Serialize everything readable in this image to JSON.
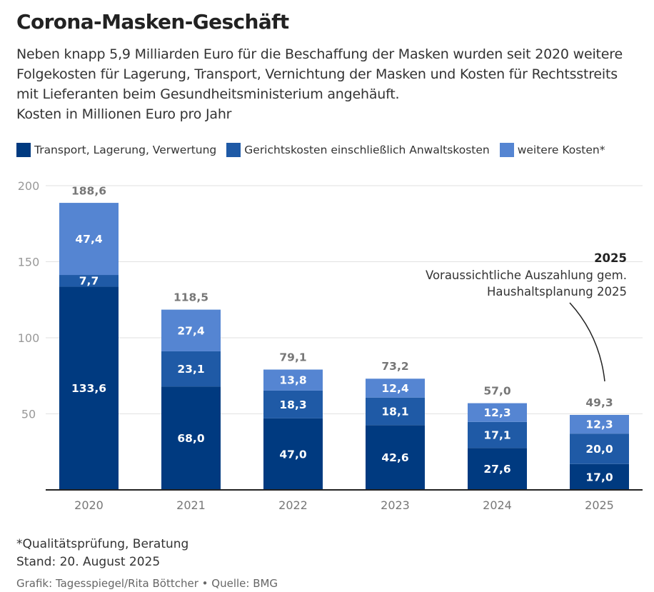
{
  "header": {
    "title": "Corona-Masken-Geschäft",
    "subtitle_lines": [
      "Neben knapp 5,9 Milliarden Euro für die Beschaffung der Masken wurden seit 2020 weitere",
      "Folgekosten für Lagerung, Transport, Vernichtung der Masken und Kosten für Rechtsstreits",
      "mit Lieferanten beim Gesundheitsministerium angehäuft.",
      "Kosten in Millionen Euro pro Jahr"
    ]
  },
  "chart_data": {
    "type": "bar",
    "stacked": true,
    "categories": [
      "2020",
      "2021",
      "2022",
      "2023",
      "2024",
      "2025"
    ],
    "series": [
      {
        "name": "Transport, Lagerung, Verwertung",
        "color": "#003a80",
        "values": [
          133.6,
          68.0,
          47.0,
          42.6,
          27.6,
          17.0
        ],
        "labels": [
          "133,6",
          "68,0",
          "47,0",
          "42,6",
          "27,6",
          "17,0"
        ]
      },
      {
        "name": "Gerichtskosten einschließlich Anwaltskosten",
        "color": "#1f5aa6",
        "values": [
          7.7,
          23.1,
          18.3,
          18.1,
          17.1,
          20.0
        ],
        "labels": [
          "7,7",
          "23,1",
          "18,3",
          "18,1",
          "17,1",
          "20,0"
        ]
      },
      {
        "name": "weitere Kosten*",
        "color": "#5585d2",
        "values": [
          47.4,
          27.4,
          13.8,
          12.4,
          12.3,
          12.3
        ],
        "labels": [
          "47,4",
          "27,4",
          "13,8",
          "12,4",
          "12,3",
          "12,3"
        ]
      }
    ],
    "totals": [
      188.6,
      118.5,
      79.1,
      73.2,
      57.0,
      49.3
    ],
    "total_labels": [
      "188,6",
      "118,5",
      "79,1",
      "73,2",
      "57,0",
      "49,3"
    ],
    "y_ticks": [
      "200",
      "150",
      "100",
      "50"
    ],
    "ylim": [
      0,
      200
    ],
    "grid": true,
    "legend_position": "top-left",
    "annotation": {
      "title": "2025",
      "lines": [
        "Voraussichtliche Auszahlung gem.",
        "Haushaltsplanung 2025"
      ]
    }
  },
  "footer": {
    "note": "*Qualitätsprüfung, Beratung",
    "stand": "Stand: 20. August 2025",
    "credit": "Grafik: Tagesspiegel/Rita Böttcher • Quelle: BMG"
  }
}
